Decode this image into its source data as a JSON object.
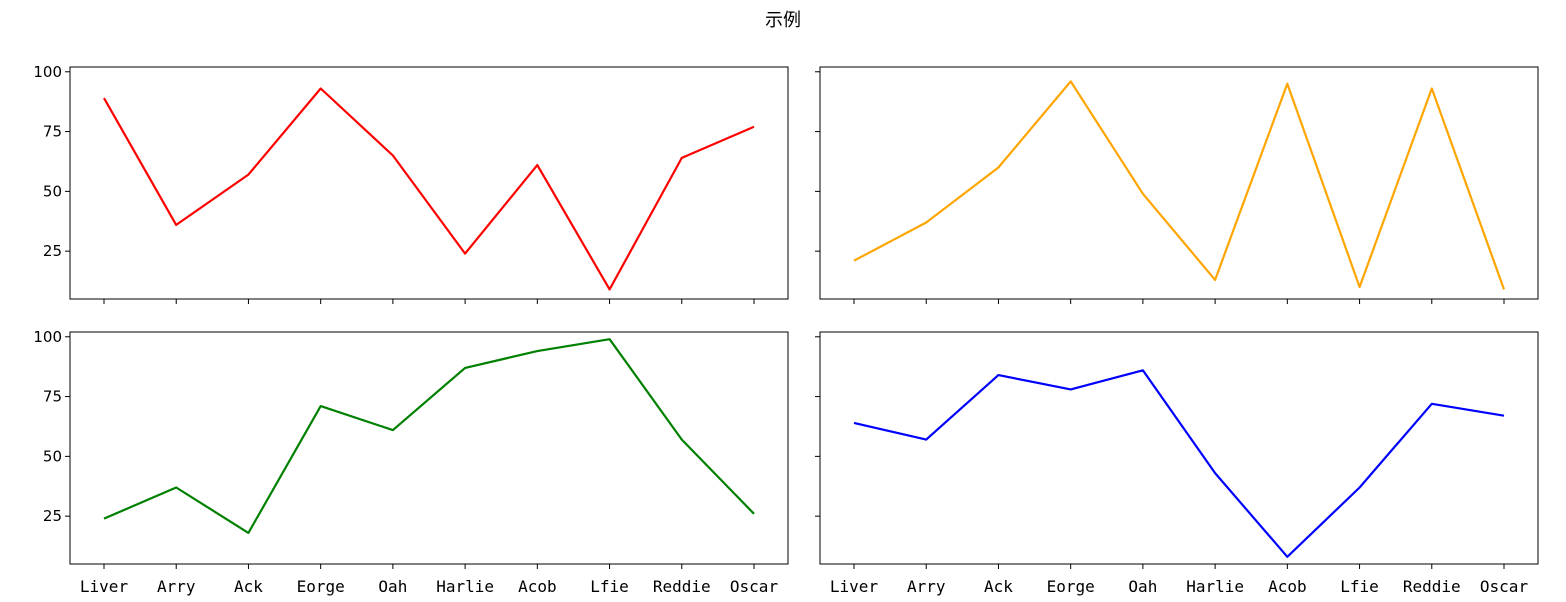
{
  "suptitle": "示例",
  "chart_data": [
    {
      "type": "line",
      "title": "",
      "xlabel": "",
      "ylabel": "",
      "color": "#ff0000",
      "categories": [
        "Liver",
        "Arry",
        "Ack",
        "Eorge",
        "Oah",
        "Harlie",
        "Acob",
        "Lfie",
        "Reddie",
        "Oscar"
      ],
      "values": [
        89,
        36,
        57,
        93,
        65,
        24,
        61,
        9,
        64,
        77
      ],
      "ylim": [
        5,
        102
      ],
      "yticks": [
        25,
        50,
        75,
        100
      ],
      "show_x_tick_labels": false,
      "show_y_tick_labels": true
    },
    {
      "type": "line",
      "title": "",
      "xlabel": "",
      "ylabel": "",
      "color": "#ffa500",
      "categories": [
        "Liver",
        "Arry",
        "Ack",
        "Eorge",
        "Oah",
        "Harlie",
        "Acob",
        "Lfie",
        "Reddie",
        "Oscar"
      ],
      "values": [
        21,
        37,
        60,
        96,
        49,
        13,
        95,
        10,
        93,
        9
      ],
      "ylim": [
        5,
        102
      ],
      "yticks": [
        25,
        50,
        75,
        100
      ],
      "show_x_tick_labels": false,
      "show_y_tick_labels": false
    },
    {
      "type": "line",
      "title": "",
      "xlabel": "",
      "ylabel": "",
      "color": "#008000",
      "categories": [
        "Liver",
        "Arry",
        "Ack",
        "Eorge",
        "Oah",
        "Harlie",
        "Acob",
        "Lfie",
        "Reddie",
        "Oscar"
      ],
      "values": [
        24,
        37,
        18,
        71,
        61,
        87,
        94,
        99,
        57,
        26
      ],
      "ylim": [
        5,
        102
      ],
      "yticks": [
        25,
        50,
        75,
        100
      ],
      "show_x_tick_labels": true,
      "show_y_tick_labels": true
    },
    {
      "type": "line",
      "title": "",
      "xlabel": "",
      "ylabel": "",
      "color": "#0000ff",
      "categories": [
        "Liver",
        "Arry",
        "Ack",
        "Eorge",
        "Oah",
        "Harlie",
        "Acob",
        "Lfie",
        "Reddie",
        "Oscar"
      ],
      "values": [
        64,
        57,
        84,
        78,
        86,
        43,
        8,
        37,
        72,
        67
      ],
      "ylim": [
        5,
        102
      ],
      "yticks": [
        25,
        50,
        75,
        100
      ],
      "show_x_tick_labels": true,
      "show_y_tick_labels": false
    }
  ]
}
